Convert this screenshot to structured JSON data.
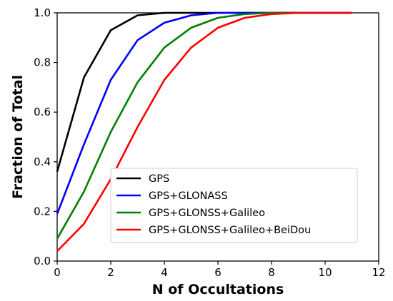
{
  "chart_data": {
    "type": "line",
    "xlabel": "N of Occultations",
    "ylabel": "Fraction of Total",
    "xlim": [
      0,
      12
    ],
    "ylim": [
      0,
      1
    ],
    "xticks": [
      "0",
      "2",
      "4",
      "6",
      "8",
      "10",
      "12"
    ],
    "yticks": [
      "0.0",
      "0.2",
      "0.4",
      "0.6",
      "0.8",
      "1.0"
    ],
    "grid": false,
    "legend_position": "lower-right",
    "x": [
      0,
      1,
      2,
      3,
      4,
      5,
      6,
      7,
      8,
      9,
      10,
      11
    ],
    "series": [
      {
        "name": "GPS",
        "color": "#000000",
        "values": [
          0.36,
          0.74,
          0.93,
          0.99,
          1.0,
          1.0,
          1.0,
          1.0,
          1.0,
          1.0,
          1.0,
          1.0
        ]
      },
      {
        "name": "GPS+GLONASS",
        "color": "#0000ff",
        "values": [
          0.19,
          0.47,
          0.73,
          0.89,
          0.96,
          0.99,
          1.0,
          1.0,
          1.0,
          1.0,
          1.0,
          1.0
        ]
      },
      {
        "name": "GPS+GLONSS+Galileo",
        "color": "#008000",
        "values": [
          0.09,
          0.28,
          0.52,
          0.72,
          0.86,
          0.94,
          0.98,
          0.995,
          1.0,
          1.0,
          1.0,
          1.0
        ]
      },
      {
        "name": "GPS+GLONSS+Galileo+BeiDou",
        "color": "#ff0000",
        "values": [
          0.04,
          0.15,
          0.33,
          0.54,
          0.73,
          0.86,
          0.94,
          0.98,
          0.995,
          1.0,
          1.0,
          1.0
        ]
      }
    ]
  }
}
